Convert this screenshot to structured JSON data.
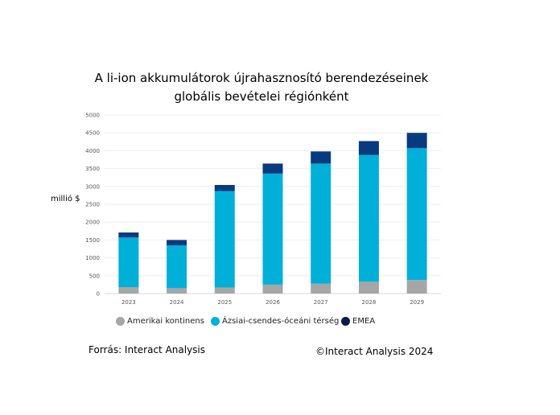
{
  "title_line1": "A li-ion akkumulátorok újrahasznosító berendezéseinek",
  "title_line2": "globális bevételei régiónként",
  "ylabel": "millió $",
  "source": "Forrás: Interact Analysis",
  "copyright": "©Interact Analysis 2024",
  "colors": {
    "americas": "#a6a6a6",
    "apac": "#00b0d8",
    "emea": "#083a80",
    "grid": "#eeeeee"
  },
  "chart_data": {
    "type": "bar",
    "stacked": true,
    "categories": [
      "2023",
      "2024",
      "2025",
      "2026",
      "2027",
      "2028",
      "2029"
    ],
    "series": [
      {
        "name": "Amerikai kontinens",
        "values": [
          180,
          150,
          170,
          250,
          280,
          330,
          380
        ]
      },
      {
        "name": "Ázsiai-csendes-óceáni térség",
        "values": [
          1390,
          1200,
          2700,
          3110,
          3360,
          3550,
          3690
        ]
      },
      {
        "name": "EMEA",
        "values": [
          140,
          150,
          170,
          280,
          340,
          390,
          430
        ]
      }
    ],
    "ylim": [
      0,
      5000
    ],
    "yticks": [
      0,
      500,
      1000,
      1500,
      2000,
      2500,
      3000,
      3500,
      4000,
      4500,
      5000
    ],
    "grid": true,
    "legend_position": "bottom"
  }
}
